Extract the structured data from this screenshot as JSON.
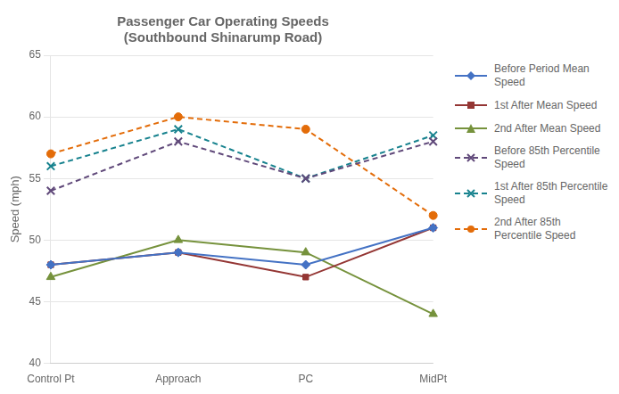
{
  "chart_data": {
    "type": "line",
    "title": "Passenger Car Operating Speeds\n(Southbound Shinarump Road)",
    "y_label": "Speed (mph)",
    "categories": [
      "Control Pt",
      "Approach",
      "PC",
      "MidPt"
    ],
    "ylim": [
      40,
      65
    ],
    "yticks": [
      40,
      45,
      50,
      55,
      60,
      65
    ],
    "grid": "y",
    "legend": "right",
    "series": [
      {
        "name": "Before Period Mean\nSpeed",
        "values": [
          48,
          49,
          48,
          51
        ],
        "color": "#4472C4",
        "line_style": "solid",
        "marker": "diamond"
      },
      {
        "name": "1st After Mean Speed",
        "values": [
          48,
          49,
          47,
          51
        ],
        "color": "#943634",
        "line_style": "solid",
        "marker": "square"
      },
      {
        "name": "2nd After Mean Speed",
        "values": [
          47,
          50,
          49,
          44
        ],
        "color": "#76923C",
        "line_style": "solid",
        "marker": "triangle"
      },
      {
        "name": "Before 85th Percentile\nSpeed",
        "values": [
          54,
          58,
          55,
          58
        ],
        "color": "#60497A",
        "line_style": "dashed",
        "marker": "x"
      },
      {
        "name": "1st After 85th Percentile\nSpeed",
        "values": [
          56,
          59,
          55,
          58.5
        ],
        "color": "#17828E",
        "line_style": "dashed",
        "marker": "x"
      },
      {
        "name": "2nd After 85th\nPercentile Speed",
        "values": [
          57,
          60,
          59,
          52
        ],
        "color": "#E36C09",
        "line_style": "dashed",
        "marker": "circle"
      }
    ]
  }
}
